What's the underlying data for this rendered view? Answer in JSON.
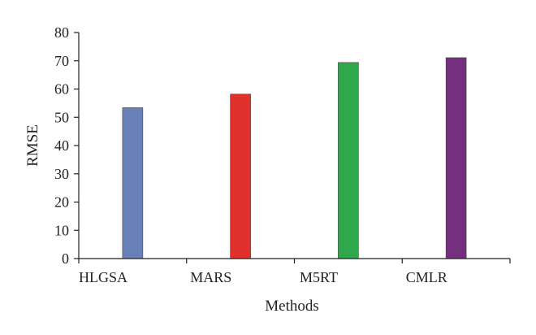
{
  "chart_data": {
    "type": "bar",
    "categories": [
      "HLGSA",
      "MARS",
      "M5RT",
      "CMLR"
    ],
    "values": [
      53.4,
      58.2,
      69.4,
      71.1
    ],
    "colors": [
      "#6a80b8",
      "#e0312c",
      "#2ea84a",
      "#74307f"
    ],
    "xlabel": "Methods",
    "ylabel": "RMSE",
    "ylim": [
      0,
      80
    ],
    "yticks": [
      "0",
      "10",
      "20",
      "30",
      "40",
      "50",
      "60",
      "70",
      "80"
    ],
    "grid": false
  }
}
